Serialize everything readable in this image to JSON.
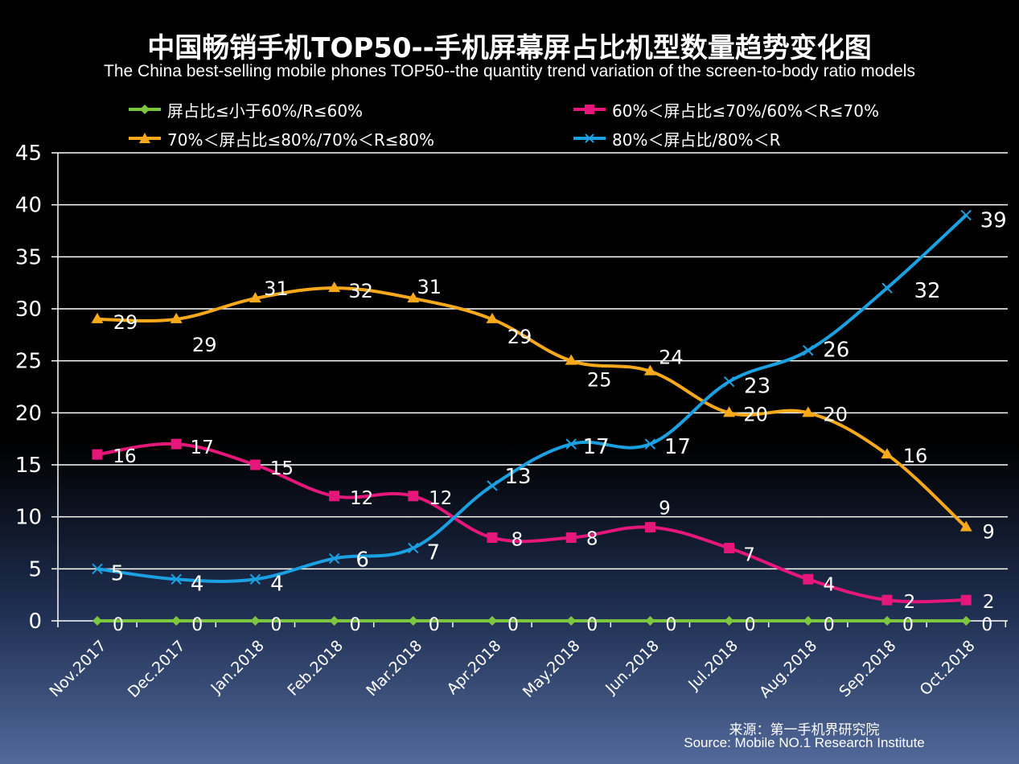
{
  "chart_data": {
    "type": "line",
    "title": "中国畅销手机TOP50--手机屏幕屏占比机型数量趋势变化图",
    "subtitle": "The China best-selling mobile phones TOP50--the quantity trend variation of the screen-to-body ratio models",
    "categories": [
      "Nov.2017",
      "Dec.2017",
      "Jan.2018",
      "Feb.2018",
      "Mar.2018",
      "Apr.2018",
      "May.2018",
      "Jun.2018",
      "Jul.2018",
      "Aug.2018",
      "Sep.2018",
      "Oct.2018"
    ],
    "ylim": [
      0,
      45
    ],
    "yticks": [
      0,
      5,
      10,
      15,
      20,
      25,
      30,
      35,
      40,
      45
    ],
    "grid": true,
    "legend_position": "top",
    "series": [
      {
        "name": "屏占比≤小于60%/R≤60%",
        "color": "#7dc63f",
        "marker": "diamond",
        "values": [
          0,
          0,
          0,
          0,
          0,
          0,
          0,
          0,
          0,
          0,
          0,
          0
        ]
      },
      {
        "name": "60%＜屏占比≤70%/60%＜R≤70%",
        "color": "#e5177b",
        "marker": "square",
        "values": [
          16,
          17,
          15,
          12,
          12,
          8,
          8,
          9,
          7,
          4,
          2,
          2
        ]
      },
      {
        "name": "70%＜屏占比≤80%/70%＜R≤80%",
        "color": "#f7a91b",
        "marker": "triangle",
        "values": [
          29,
          29,
          31,
          32,
          31,
          29,
          25,
          24,
          20,
          20,
          16,
          9
        ]
      },
      {
        "name": "80%＜屏占比/80%＜R",
        "color": "#1ba1e2",
        "marker": "x",
        "values": [
          5,
          4,
          4,
          6,
          7,
          13,
          17,
          17,
          23,
          26,
          32,
          39
        ]
      }
    ],
    "source_cn": "来源：第一手机界研究院",
    "source_en": "Source: Mobile NO.1 Research Institute"
  }
}
